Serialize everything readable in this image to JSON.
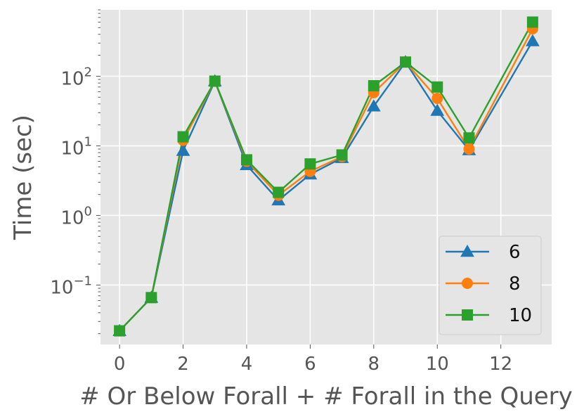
{
  "chart_data": {
    "type": "line",
    "xlabel": "# Or Below Forall + # Forall in the Query",
    "ylabel": "Time (sec)",
    "yscale": "log",
    "xlim": [
      -0.6,
      13.6
    ],
    "ylim": [
      0.014,
      900
    ],
    "xticks": [
      0,
      2,
      4,
      6,
      8,
      10,
      12
    ],
    "yticks": [
      {
        "value": 0.1,
        "base": "10",
        "exp": "−1"
      },
      {
        "value": 1,
        "base": "10",
        "exp": "0"
      },
      {
        "value": 10,
        "base": "10",
        "exp": "1"
      },
      {
        "value": 100,
        "base": "10",
        "exp": "2"
      }
    ],
    "grid": true,
    "legend_position": "lower-right",
    "series": [
      {
        "name": "6",
        "color": "#1f77b4",
        "marker": "triangle",
        "points": [
          [
            0,
            0.022
          ],
          [
            1,
            0.066
          ],
          [
            2,
            8.5
          ],
          [
            3,
            85
          ],
          [
            4,
            5.3
          ],
          [
            5,
            1.65
          ],
          [
            6,
            3.9
          ],
          [
            7,
            6.7
          ],
          [
            8,
            37
          ],
          [
            9,
            160
          ],
          [
            10,
            32
          ],
          [
            11,
            8.7
          ],
          [
            13,
            320
          ]
        ]
      },
      {
        "name": "8",
        "color": "#ff7f0e",
        "marker": "circle",
        "points": [
          [
            0,
            0.022
          ],
          [
            1,
            0.066
          ],
          [
            2,
            12
          ],
          [
            3,
            85
          ],
          [
            4,
            6.0
          ],
          [
            5,
            1.95
          ],
          [
            6,
            4.3
          ],
          [
            7,
            7.0
          ],
          [
            8,
            58
          ],
          [
            9,
            160
          ],
          [
            10,
            48
          ],
          [
            11,
            9.0
          ],
          [
            13,
            480
          ]
        ]
      },
      {
        "name": "10",
        "color": "#2ca02c",
        "marker": "square",
        "points": [
          [
            0,
            0.022
          ],
          [
            1,
            0.066
          ],
          [
            2,
            13.5
          ],
          [
            3,
            85
          ],
          [
            4,
            6.3
          ],
          [
            5,
            2.15
          ],
          [
            6,
            5.5
          ],
          [
            7,
            7.4
          ],
          [
            8,
            73
          ],
          [
            9,
            160
          ],
          [
            10,
            70
          ],
          [
            11,
            13
          ],
          [
            13,
            600
          ]
        ]
      }
    ]
  }
}
